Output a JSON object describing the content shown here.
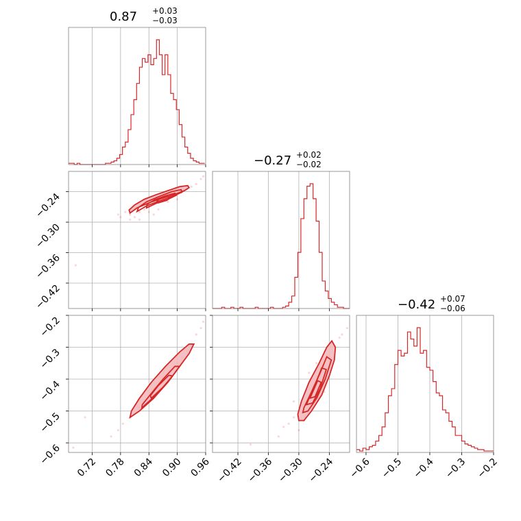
{
  "chart_data": {
    "type": "corner",
    "color": "#d62728",
    "fill_color": "#f3b9bb",
    "grid": true,
    "parameters": [
      {
        "range": [
          0.67,
          0.96
        ],
        "ticks": [
          0.72,
          0.78,
          0.84,
          0.9,
          0.96
        ],
        "tick_labels": [
          "0.72",
          "0.78",
          "0.84",
          "0.90",
          "0.96"
        ],
        "title": {
          "value": "0.87",
          "plus": "+0.03",
          "minus": "−0.03"
        },
        "histogram": {
          "bins": [
            0.67,
            0.676,
            0.682,
            0.688,
            0.694,
            0.7,
            0.706,
            0.712,
            0.718,
            0.724,
            0.73,
            0.736,
            0.742,
            0.748,
            0.754,
            0.76,
            0.766,
            0.772,
            0.778,
            0.784,
            0.79,
            0.796,
            0.802,
            0.808,
            0.814,
            0.82,
            0.826,
            0.832,
            0.838,
            0.844,
            0.85,
            0.856,
            0.862,
            0.868,
            0.874,
            0.88,
            0.886,
            0.892,
            0.898,
            0.904,
            0.91,
            0.916,
            0.922,
            0.928,
            0.934,
            0.94,
            0.946,
            0.952,
            0.958
          ],
          "counts": [
            1,
            1,
            0,
            1,
            0,
            0,
            0,
            0,
            0,
            0,
            0,
            0,
            0,
            1,
            1,
            2,
            3,
            5,
            8,
            14,
            18,
            28,
            40,
            52,
            65,
            78,
            85,
            82,
            88,
            80,
            85,
            100,
            88,
            72,
            88,
            72,
            57,
            52,
            44,
            32,
            22,
            14,
            9,
            5,
            3,
            2,
            1,
            1
          ]
        }
      },
      {
        "range": [
          -0.47,
          -0.2
        ],
        "ticks": [
          -0.42,
          -0.36,
          -0.3,
          -0.24
        ],
        "tick_labels": [
          "−0.42",
          "−0.36",
          "−0.30",
          "−0.24"
        ],
        "title": {
          "value": "−0.27",
          "plus": "+0.02",
          "minus": "−0.02"
        },
        "histogram": {
          "bins": [
            -0.47,
            -0.464,
            -0.458,
            -0.452,
            -0.446,
            -0.44,
            -0.434,
            -0.428,
            -0.422,
            -0.416,
            -0.41,
            -0.404,
            -0.398,
            -0.392,
            -0.386,
            -0.38,
            -0.374,
            -0.368,
            -0.362,
            -0.356,
            -0.35,
            -0.344,
            -0.338,
            -0.332,
            -0.326,
            -0.32,
            -0.314,
            -0.308,
            -0.302,
            -0.296,
            -0.29,
            -0.284,
            -0.278,
            -0.272,
            -0.266,
            -0.26,
            -0.254,
            -0.248,
            -0.242,
            -0.236,
            -0.23,
            -0.224,
            -0.218,
            -0.212,
            -0.206,
            -0.2
          ],
          "counts": [
            0,
            0,
            0,
            1,
            0,
            0,
            1,
            0,
            0,
            1,
            0,
            0,
            0,
            0,
            1,
            0,
            0,
            0,
            0,
            1,
            0,
            0,
            0,
            1,
            2,
            5,
            10,
            25,
            45,
            72,
            88,
            98,
            100,
            88,
            70,
            45,
            22,
            14,
            8,
            5,
            3,
            1,
            1,
            0,
            0
          ]
        }
      },
      {
        "range": [
          -0.63,
          -0.2
        ],
        "ticks": [
          -0.6,
          -0.5,
          -0.4,
          -0.3,
          -0.2
        ],
        "tick_labels": [
          "−0.6",
          "−0.5",
          "−0.4",
          "−0.3",
          "−0.2"
        ],
        "title": {
          "value": "−0.42",
          "plus": "+0.07",
          "minus": "−0.06"
        },
        "histogram": {
          "bins": [
            -0.63,
            -0.62,
            -0.61,
            -0.6,
            -0.59,
            -0.58,
            -0.57,
            -0.56,
            -0.55,
            -0.54,
            -0.53,
            -0.52,
            -0.51,
            -0.5,
            -0.49,
            -0.48,
            -0.47,
            -0.46,
            -0.45,
            -0.44,
            -0.43,
            -0.42,
            -0.41,
            -0.4,
            -0.39,
            -0.38,
            -0.37,
            -0.36,
            -0.35,
            -0.34,
            -0.33,
            -0.32,
            -0.31,
            -0.3,
            -0.29,
            -0.28,
            -0.27,
            -0.26,
            -0.25,
            -0.24,
            -0.23,
            -0.22,
            -0.21,
            -0.2
          ],
          "counts": [
            2,
            1,
            3,
            2,
            4,
            5,
            8,
            12,
            18,
            28,
            40,
            45,
            62,
            72,
            68,
            70,
            85,
            80,
            75,
            88,
            70,
            72,
            60,
            58,
            50,
            42,
            40,
            30,
            28,
            22,
            18,
            12,
            12,
            8,
            6,
            5,
            4,
            3,
            2,
            2,
            1,
            1,
            1
          ]
        }
      }
    ],
    "pairs": [
      {
        "x": 0,
        "y": 1,
        "samples": [
          [
            0.84,
            -0.27
          ],
          [
            0.86,
            -0.26
          ],
          [
            0.88,
            -0.25
          ],
          [
            0.9,
            -0.245
          ],
          [
            0.82,
            -0.28
          ],
          [
            0.8,
            -0.285
          ],
          [
            0.81,
            -0.29
          ],
          [
            0.79,
            -0.28
          ],
          [
            0.83,
            -0.275
          ],
          [
            0.85,
            -0.265
          ],
          [
            0.87,
            -0.255
          ],
          [
            0.89,
            -0.25
          ],
          [
            0.91,
            -0.24
          ],
          [
            0.92,
            -0.235
          ],
          [
            0.93,
            -0.23
          ],
          [
            0.94,
            -0.225
          ],
          [
            0.95,
            -0.215
          ],
          [
            0.955,
            -0.21
          ],
          [
            0.78,
            -0.29
          ],
          [
            0.775,
            -0.285
          ],
          [
            0.82,
            -0.295
          ],
          [
            0.86,
            -0.275
          ],
          [
            0.88,
            -0.26
          ],
          [
            0.9,
            -0.255
          ],
          [
            0.84,
            -0.28
          ],
          [
            0.8,
            -0.295
          ],
          [
            0.83,
            -0.26
          ],
          [
            0.87,
            -0.245
          ],
          [
            0.685,
            -0.385
          ],
          [
            0.89,
            -0.24
          ],
          [
            0.85,
            -0.285
          ],
          [
            0.81,
            -0.275
          ]
        ],
        "contours": [
          [
            [
              0.8,
              -0.282
            ],
            [
              0.815,
              -0.272
            ],
            [
              0.84,
              -0.262
            ],
            [
              0.865,
              -0.254
            ],
            [
              0.895,
              -0.245
            ],
            [
              0.915,
              -0.238
            ],
            [
              0.925,
              -0.232
            ],
            [
              0.922,
              -0.228
            ],
            [
              0.905,
              -0.23
            ],
            [
              0.88,
              -0.238
            ],
            [
              0.855,
              -0.246
            ],
            [
              0.83,
              -0.255
            ],
            [
              0.81,
              -0.266
            ],
            [
              0.798,
              -0.276
            ]
          ],
          [
            [
              0.815,
              -0.279
            ],
            [
              0.835,
              -0.268
            ],
            [
              0.86,
              -0.259
            ],
            [
              0.89,
              -0.249
            ],
            [
              0.91,
              -0.241
            ],
            [
              0.908,
              -0.236
            ],
            [
              0.888,
              -0.24
            ],
            [
              0.86,
              -0.25
            ],
            [
              0.835,
              -0.26
            ],
            [
              0.818,
              -0.271
            ]
          ],
          [
            [
              0.835,
              -0.272
            ],
            [
              0.855,
              -0.263
            ],
            [
              0.88,
              -0.255
            ],
            [
              0.898,
              -0.247
            ],
            [
              0.895,
              -0.243
            ],
            [
              0.875,
              -0.248
            ],
            [
              0.852,
              -0.256
            ],
            [
              0.836,
              -0.265
            ]
          ],
          [
            [
              0.86,
              -0.262
            ],
            [
              0.878,
              -0.257
            ],
            [
              0.885,
              -0.252
            ],
            [
              0.88,
              -0.249
            ],
            [
              0.865,
              -0.253
            ],
            [
              0.857,
              -0.258
            ]
          ]
        ]
      },
      {
        "x": 0,
        "y": 2,
        "samples": [
          [
            0.8,
            -0.52
          ],
          [
            0.82,
            -0.49
          ],
          [
            0.84,
            -0.46
          ],
          [
            0.86,
            -0.43
          ],
          [
            0.88,
            -0.39
          ],
          [
            0.9,
            -0.35
          ],
          [
            0.92,
            -0.31
          ],
          [
            0.93,
            -0.29
          ],
          [
            0.94,
            -0.26
          ],
          [
            0.95,
            -0.24
          ],
          [
            0.955,
            -0.22
          ],
          [
            0.785,
            -0.54
          ],
          [
            0.775,
            -0.56
          ],
          [
            0.76,
            -0.58
          ],
          [
            0.83,
            -0.48
          ],
          [
            0.85,
            -0.45
          ],
          [
            0.87,
            -0.41
          ],
          [
            0.89,
            -0.37
          ],
          [
            0.91,
            -0.33
          ],
          [
            0.705,
            -0.52
          ],
          [
            0.68,
            -0.615
          ]
        ],
        "contours": [
          [
            [
              0.8,
              -0.52
            ],
            [
              0.82,
              -0.5
            ],
            [
              0.85,
              -0.46
            ],
            [
              0.88,
              -0.41
            ],
            [
              0.905,
              -0.36
            ],
            [
              0.925,
              -0.32
            ],
            [
              0.935,
              -0.29
            ],
            [
              0.925,
              -0.29
            ],
            [
              0.905,
              -0.315
            ],
            [
              0.875,
              -0.36
            ],
            [
              0.845,
              -0.41
            ],
            [
              0.82,
              -0.46
            ],
            [
              0.803,
              -0.5
            ]
          ],
          [
            [
              0.825,
              -0.49
            ],
            [
              0.855,
              -0.45
            ],
            [
              0.885,
              -0.4
            ],
            [
              0.905,
              -0.36
            ],
            [
              0.895,
              -0.36
            ],
            [
              0.87,
              -0.4
            ],
            [
              0.845,
              -0.445
            ],
            [
              0.826,
              -0.48
            ]
          ],
          [
            [
              0.845,
              -0.46
            ],
            [
              0.87,
              -0.425
            ],
            [
              0.89,
              -0.39
            ],
            [
              0.882,
              -0.388
            ],
            [
              0.86,
              -0.42
            ],
            [
              0.843,
              -0.452
            ]
          ]
        ]
      },
      {
        "x": 1,
        "y": 2,
        "samples": [
          [
            -0.3,
            -0.5
          ],
          [
            -0.29,
            -0.48
          ],
          [
            -0.28,
            -0.45
          ],
          [
            -0.27,
            -0.42
          ],
          [
            -0.26,
            -0.4
          ],
          [
            -0.25,
            -0.36
          ],
          [
            -0.24,
            -0.33
          ],
          [
            -0.23,
            -0.3
          ],
          [
            -0.22,
            -0.27
          ],
          [
            -0.31,
            -0.52
          ],
          [
            -0.32,
            -0.54
          ],
          [
            -0.33,
            -0.55
          ],
          [
            -0.31,
            -0.47
          ],
          [
            -0.28,
            -0.38
          ],
          [
            -0.265,
            -0.35
          ],
          [
            -0.215,
            -0.26
          ],
          [
            -0.205,
            -0.24
          ],
          [
            -0.3,
            -0.56
          ],
          [
            -0.29,
            -0.53
          ],
          [
            -0.25,
            -0.44
          ],
          [
            -0.395,
            -0.605
          ],
          [
            -0.34,
            -0.58
          ]
        ],
        "contours": [
          [
            [
              -0.3,
              -0.53
            ],
            [
              -0.29,
              -0.53
            ],
            [
              -0.275,
              -0.5
            ],
            [
              -0.255,
              -0.45
            ],
            [
              -0.24,
              -0.39
            ],
            [
              -0.23,
              -0.34
            ],
            [
              -0.228,
              -0.3
            ],
            [
              -0.235,
              -0.28
            ],
            [
              -0.245,
              -0.3
            ],
            [
              -0.26,
              -0.35
            ],
            [
              -0.28,
              -0.41
            ],
            [
              -0.295,
              -0.47
            ],
            [
              -0.302,
              -0.51
            ]
          ],
          [
            [
              -0.292,
              -0.505
            ],
            [
              -0.282,
              -0.5
            ],
            [
              -0.265,
              -0.46
            ],
            [
              -0.248,
              -0.4
            ],
            [
              -0.236,
              -0.34
            ],
            [
              -0.245,
              -0.33
            ],
            [
              -0.258,
              -0.38
            ],
            [
              -0.275,
              -0.44
            ],
            [
              -0.29,
              -0.49
            ]
          ],
          [
            [
              -0.285,
              -0.48
            ],
            [
              -0.273,
              -0.475
            ],
            [
              -0.258,
              -0.43
            ],
            [
              -0.246,
              -0.37
            ],
            [
              -0.255,
              -0.365
            ],
            [
              -0.266,
              -0.41
            ],
            [
              -0.28,
              -0.46
            ]
          ],
          [
            [
              -0.278,
              -0.46
            ],
            [
              -0.268,
              -0.455
            ],
            [
              -0.256,
              -0.41
            ],
            [
              -0.263,
              -0.405
            ],
            [
              -0.274,
              -0.445
            ]
          ]
        ]
      }
    ]
  }
}
